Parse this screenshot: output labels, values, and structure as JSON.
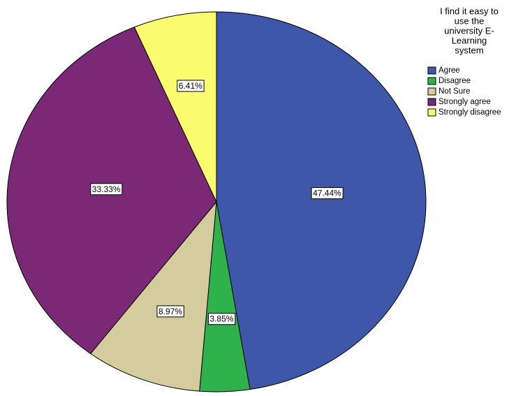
{
  "chart_data": {
    "type": "pie",
    "legend_title": [
      "I find it easy to",
      "use the",
      "university E-",
      "Learning",
      "system"
    ],
    "legend": "right",
    "categories": [
      "Agree",
      "Disagree",
      "Not Sure",
      "Strongly agree",
      "Strongly disagree"
    ],
    "values": [
      47.44,
      3.85,
      8.97,
      33.33,
      6.41
    ],
    "value_labels": [
      "47.44%",
      "3.85%",
      "8.97%",
      "33.33%",
      "6.41%"
    ],
    "colors": [
      "#3f57a8",
      "#2fb24c",
      "#d4cc9c",
      "#7b2977",
      "#fbfb70"
    ]
  }
}
